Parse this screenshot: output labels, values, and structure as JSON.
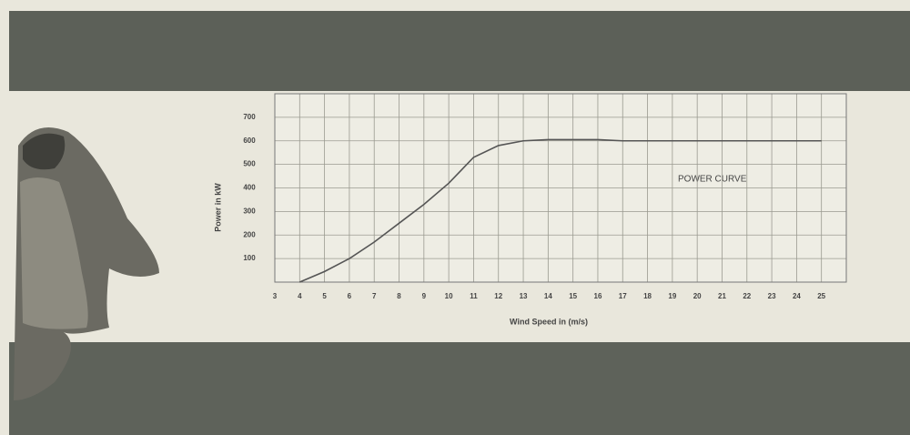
{
  "chart_data": {
    "type": "line",
    "x": [
      4,
      5,
      6,
      7,
      8,
      9,
      10,
      11,
      12,
      13,
      14,
      15,
      16,
      17,
      18,
      19,
      20,
      21,
      22,
      23,
      24,
      25
    ],
    "series": [
      {
        "name": "POWER CURVE",
        "color": "#555555",
        "values": [
          0,
          45,
          100,
          170,
          250,
          330,
          420,
          530,
          580,
          600,
          605,
          605,
          605,
          600,
          600,
          600,
          600,
          600,
          600,
          600,
          600,
          600
        ]
      }
    ],
    "x_label": "Wind Speed in (m/s)",
    "y_label": "Power in kW",
    "xlim": [
      3,
      26
    ],
    "xticks": [
      3,
      4,
      5,
      6,
      7,
      8,
      9,
      10,
      11,
      12,
      13,
      14,
      15,
      16,
      17,
      18,
      19,
      20,
      21,
      22,
      23,
      24,
      25
    ],
    "ylim": [
      0,
      800
    ],
    "yticks": [
      100,
      200,
      300,
      400,
      500,
      600,
      700
    ],
    "grid": true
  }
}
